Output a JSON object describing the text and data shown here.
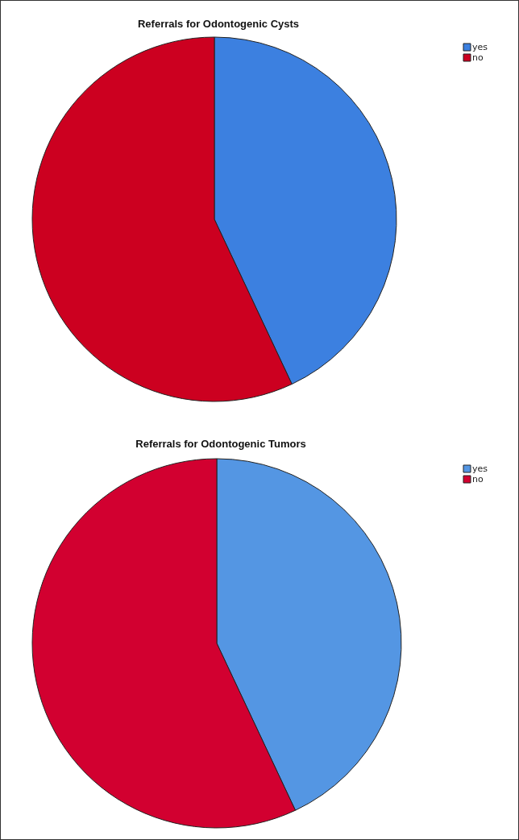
{
  "chart_data": [
    {
      "type": "pie",
      "title": "Referrals for Odontogenic Cysts",
      "categories": [
        "yes",
        "no"
      ],
      "values": [
        43,
        57
      ],
      "colors": [
        "#3c80e0",
        "#cc0020"
      ],
      "legend": "top right"
    },
    {
      "type": "pie",
      "title": "Referrals for Odontogenic Tumors",
      "categories": [
        "yes",
        "no"
      ],
      "values": [
        43,
        57
      ],
      "colors": [
        "#5496e3",
        "#d20030"
      ],
      "legend": "top right"
    }
  ]
}
